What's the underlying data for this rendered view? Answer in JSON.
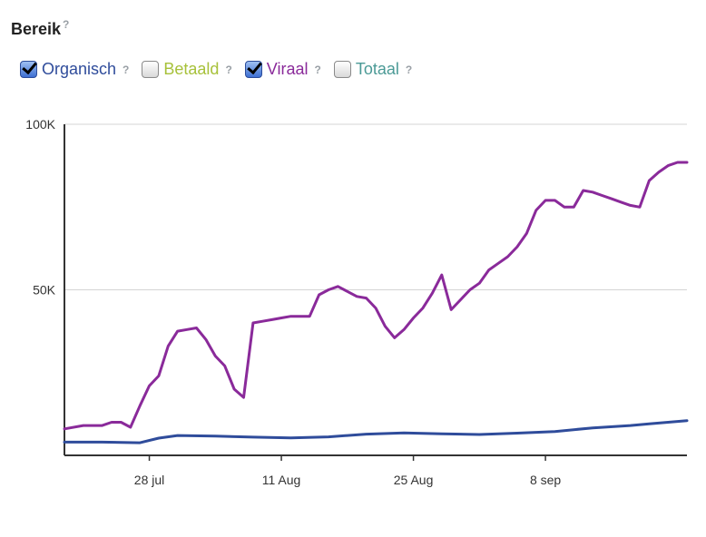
{
  "header": {
    "title": "Bereik",
    "help_icon": "question-mark"
  },
  "legend": [
    {
      "label": "Organisch",
      "checked": true,
      "color": "#2f4c9b"
    },
    {
      "label": "Betaald",
      "checked": false,
      "color": "#a7c13a"
    },
    {
      "label": "Viraal",
      "checked": true,
      "color": "#8a2a9a"
    },
    {
      "label": "Totaal",
      "checked": false,
      "color": "#4b9a96"
    }
  ],
  "chart_data": {
    "type": "line",
    "ylim": [
      0,
      100000
    ],
    "y_ticks": [
      {
        "label": "100K",
        "value": 100000
      },
      {
        "label": "50K",
        "value": 50000
      }
    ],
    "x_ticks": [
      {
        "label": "28 jul",
        "value": 9
      },
      {
        "label": "11 Aug",
        "value": 23
      },
      {
        "label": "25 Aug",
        "value": 37
      },
      {
        "label": "8 sep",
        "value": 51
      }
    ],
    "xlim": [
      0,
      66
    ],
    "grid": true,
    "series": [
      {
        "name": "Viraal",
        "color": "#8a2a9a",
        "x": [
          0,
          2,
          4,
          5,
          6,
          7,
          8,
          9,
          10,
          11,
          12,
          13,
          14,
          15,
          16,
          17,
          18,
          19,
          20,
          21,
          22,
          23,
          24,
          25,
          26,
          27,
          28,
          29,
          30,
          31,
          32,
          33,
          34,
          35,
          36,
          37,
          38,
          39,
          40,
          41,
          42,
          43,
          44,
          45,
          46,
          47,
          48,
          49,
          50,
          51,
          52,
          53,
          54,
          55,
          56,
          57,
          58,
          59,
          60,
          61,
          62,
          63,
          64,
          65,
          66
        ],
        "values": [
          8000,
          9000,
          9000,
          10000,
          10000,
          8500,
          15000,
          21000,
          24000,
          33000,
          37500,
          38000,
          38500,
          35000,
          30000,
          27000,
          20000,
          17500,
          40000,
          40500,
          41000,
          41500,
          42000,
          42000,
          42000,
          48500,
          50000,
          51000,
          49500,
          48000,
          47500,
          44500,
          39000,
          35500,
          38000,
          41500,
          44500,
          49000,
          54500,
          44000,
          47000,
          50000,
          52000,
          56000,
          58000,
          60000,
          63000,
          67000,
          74000,
          77000,
          77000,
          75000,
          75000,
          80000,
          79500,
          78500,
          77500,
          76500,
          75500,
          75000,
          83000,
          85500,
          87500,
          88500,
          88500
        ],
        "note": ""
      },
      {
        "name": "Organisch",
        "color": "#2f4c9b",
        "x": [
          0,
          4,
          8,
          10,
          12,
          16,
          20,
          24,
          28,
          32,
          36,
          40,
          44,
          48,
          52,
          56,
          60,
          62,
          64,
          66
        ],
        "values": [
          4000,
          4000,
          3800,
          5200,
          6000,
          5800,
          5500,
          5300,
          5600,
          6400,
          6800,
          6500,
          6300,
          6700,
          7200,
          8300,
          9000,
          9500,
          10000,
          10500
        ]
      }
    ]
  }
}
